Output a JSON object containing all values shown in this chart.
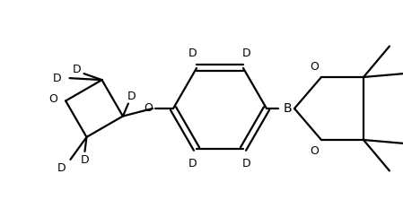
{
  "background": "#ffffff",
  "line_color": "#000000",
  "line_width": 1.6,
  "fig_width": 4.49,
  "fig_height": 2.42,
  "dpi": 100,
  "xlim": [
    0,
    449
  ],
  "ylim": [
    0,
    242
  ]
}
